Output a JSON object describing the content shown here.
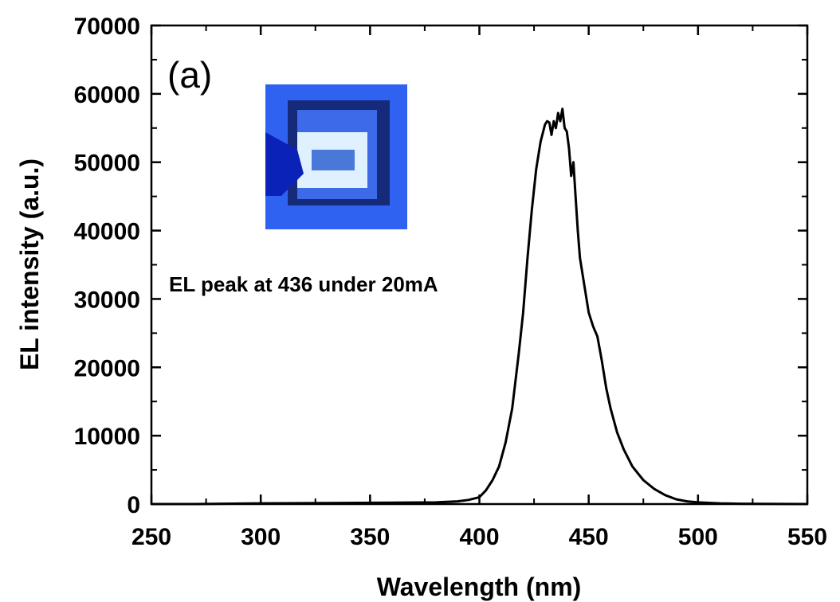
{
  "chart_data": {
    "type": "line",
    "title": "",
    "xlabel": "Wavelength (nm)",
    "ylabel": "EL intensity (a.u.)",
    "xlim": [
      250,
      550
    ],
    "ylim": [
      0,
      70000
    ],
    "xticks": [
      250,
      300,
      350,
      400,
      450,
      500,
      550
    ],
    "yticks": [
      0,
      10000,
      20000,
      30000,
      40000,
      50000,
      60000,
      70000
    ],
    "xtick_labels": [
      "250",
      "300",
      "350",
      "400",
      "450",
      "500",
      "550"
    ],
    "ytick_labels": [
      "0",
      "10000",
      "20000",
      "30000",
      "40000",
      "50000",
      "60000",
      "70000"
    ],
    "grid": false,
    "panel_label": "(a)",
    "annotation": "EL peak at 436 under 20mA",
    "inset": "photo of emitting blue LED device",
    "series_color": "#000000",
    "series": [
      {
        "x": [
          250,
          270,
          300,
          330,
          360,
          380,
          390,
          395,
          400,
          403,
          406,
          409,
          412,
          415,
          418,
          420,
          422,
          424,
          426,
          428,
          430,
          431,
          432,
          433,
          434,
          435,
          436,
          437,
          438,
          439,
          440,
          441,
          442,
          443,
          444,
          445,
          446,
          448,
          450,
          452,
          454,
          456,
          458,
          460,
          463,
          466,
          470,
          475,
          480,
          485,
          490,
          495,
          500,
          510,
          520,
          530,
          550
        ],
        "y": [
          0,
          0,
          100,
          150,
          200,
          250,
          400,
          600,
          1000,
          2000,
          3500,
          5500,
          9000,
          14000,
          22000,
          28000,
          36000,
          43000,
          49000,
          53000,
          55500,
          56000,
          55800,
          54000,
          56000,
          55000,
          57200,
          56000,
          57800,
          55000,
          54500,
          52000,
          48000,
          50000,
          45000,
          40000,
          36000,
          32000,
          28000,
          26000,
          24500,
          21000,
          17000,
          14000,
          10500,
          8000,
          5500,
          3500,
          2200,
          1300,
          700,
          400,
          250,
          100,
          50,
          20,
          0
        ]
      }
    ]
  },
  "inset_colors": {
    "background": "#2f62f0",
    "dark_frame": "#152a78",
    "glow": "#dff0ff",
    "center": "#4a78d8",
    "probe": "#0b22b8"
  }
}
